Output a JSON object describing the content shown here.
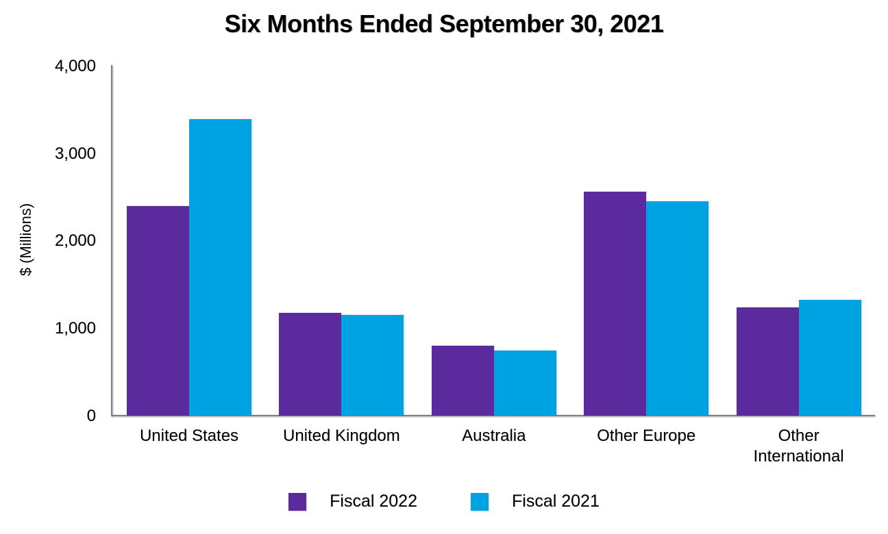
{
  "title": "Six Months Ended September 30, 2021",
  "y_axis": {
    "label": "$ (Millions)",
    "tick_labels": [
      "4,000",
      "3,000",
      "2,000",
      "1,000",
      "0"
    ],
    "tick_values": [
      4000,
      3000,
      2000,
      1000,
      0
    ]
  },
  "legend": {
    "items": [
      "Fiscal 2022",
      "Fiscal 2021"
    ]
  },
  "chart_data": {
    "type": "bar",
    "title": "Six Months Ended September 30, 2021",
    "xlabel": "",
    "ylabel": "$ (Millions)",
    "ylim": [
      0,
      4000
    ],
    "ytick_interval": 1000,
    "grid": false,
    "legend_position": "bottom",
    "categories": [
      "United States",
      "United Kingdom",
      "Australia",
      "Other Europe",
      "Other International"
    ],
    "series": [
      {
        "name": "Fiscal 2022",
        "color": "#5B2B9E",
        "values": [
          2400,
          1175,
          800,
          2565,
          1240
        ]
      },
      {
        "name": "Fiscal 2021",
        "color": "#00A3E1",
        "values": [
          3400,
          1150,
          745,
          2455,
          1325
        ]
      }
    ]
  }
}
